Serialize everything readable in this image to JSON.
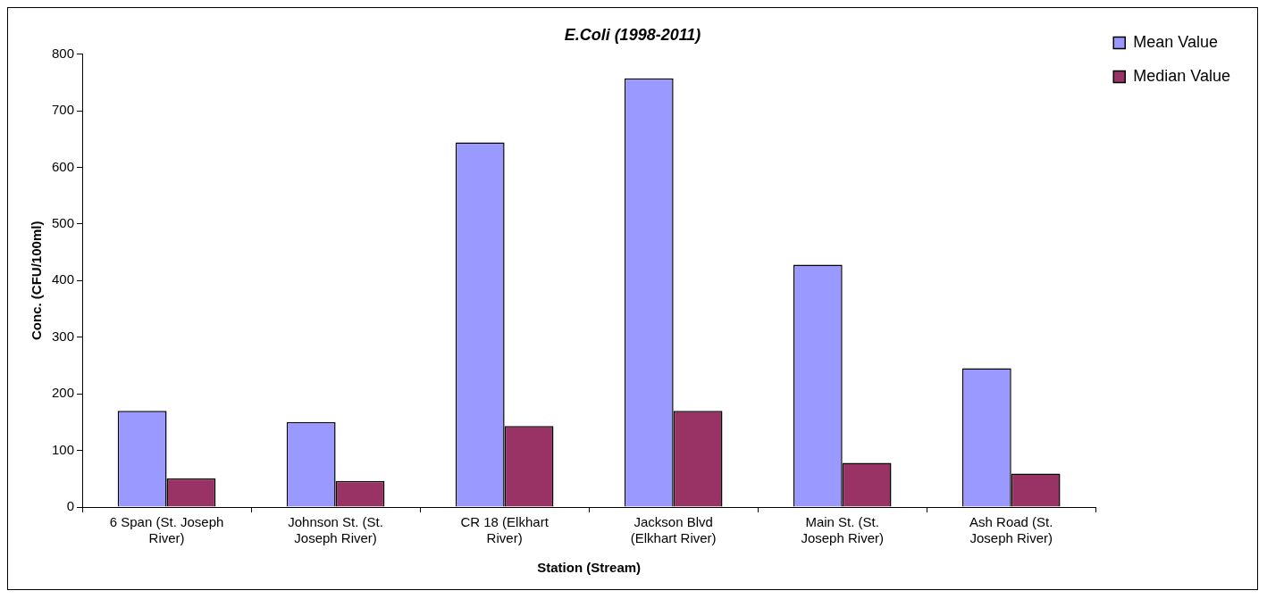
{
  "chart_data": {
    "type": "bar",
    "title": "E.Coli (1998-2011)",
    "xlabel": "Station (Stream)",
    "ylabel": "Conc. (CFU/100ml)",
    "categories": [
      "6 Span (St. Joseph River)",
      "Johnson St. (St. Joseph River)",
      "CR 18 (Elkhart River)",
      "Jackson Blvd (Elkhart River)",
      "Main St. (St. Joseph River)",
      "Ash Road (St. Joseph River)"
    ],
    "series": [
      {
        "name": "Mean Value",
        "color": "#9999ff",
        "values": [
          170,
          150,
          644,
          757,
          428,
          245
        ]
      },
      {
        "name": "Median Value",
        "color": "#993366",
        "values": [
          51,
          46,
          143,
          170,
          78,
          59
        ]
      }
    ],
    "ylim": [
      0,
      800
    ],
    "yticks": [
      0,
      100,
      200,
      300,
      400,
      500,
      600,
      700,
      800
    ],
    "grid": false,
    "legend": "top right"
  }
}
